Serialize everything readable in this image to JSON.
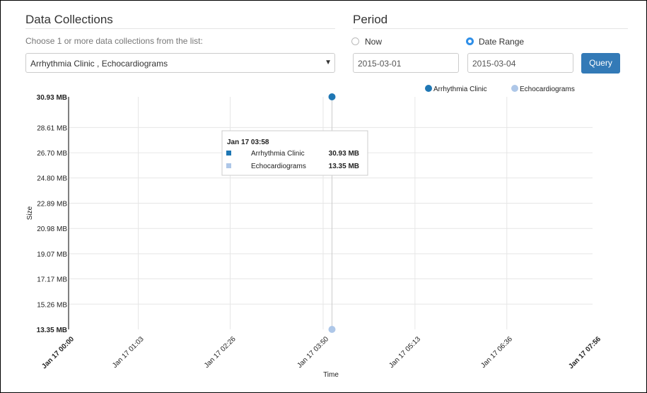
{
  "data_collections": {
    "title": "Data Collections",
    "hint": "Choose 1 or more data collections from the list:",
    "selected": "Arrhythmia Clinic , Echocardiograms"
  },
  "period": {
    "title": "Period",
    "options": [
      "Now",
      "Date Range"
    ],
    "start": "2015-03-01",
    "end": "2015-03-04",
    "button": "Query"
  },
  "chart_data": {
    "type": "scatter",
    "x_label": "Time",
    "y_label": "Size",
    "x": [
      "Jan 17 03:58"
    ],
    "series": [
      {
        "name": "Arrhythmia Clinic",
        "color": "#1f77b4",
        "values": [
          30.93
        ],
        "value_labels": [
          "30.93 MB"
        ]
      },
      {
        "name": "Echocardiograms",
        "color": "#aec7e8",
        "values": [
          13.35
        ],
        "value_labels": [
          "13.35 MB"
        ]
      }
    ],
    "xlim": [
      "Jan 17 00:00",
      "Jan 17 07:56"
    ],
    "xticks": [
      "Jan 17 00:00",
      "Jan 17 01:03",
      "Jan 17 02:26",
      "Jan 17 03:50",
      "Jan 17 05:13",
      "Jan 17 06:36",
      "Jan 17 07:56"
    ],
    "ylim": [
      13.35,
      30.93
    ],
    "yticks": [
      {
        "value": 13.35,
        "label": "13.35 MB"
      },
      {
        "value": 15.26,
        "label": "15.26 MB"
      },
      {
        "value": 17.17,
        "label": "17.17 MB"
      },
      {
        "value": 19.07,
        "label": "19.07 MB"
      },
      {
        "value": 20.98,
        "label": "20.98 MB"
      },
      {
        "value": 22.89,
        "label": "22.89 MB"
      },
      {
        "value": 24.8,
        "label": "24.80 MB"
      },
      {
        "value": 26.7,
        "label": "26.70 MB"
      },
      {
        "value": 28.61,
        "label": "28.61 MB"
      },
      {
        "value": 30.93,
        "label": "30.93 MB"
      }
    ],
    "grid": true,
    "legend": "top-right"
  }
}
